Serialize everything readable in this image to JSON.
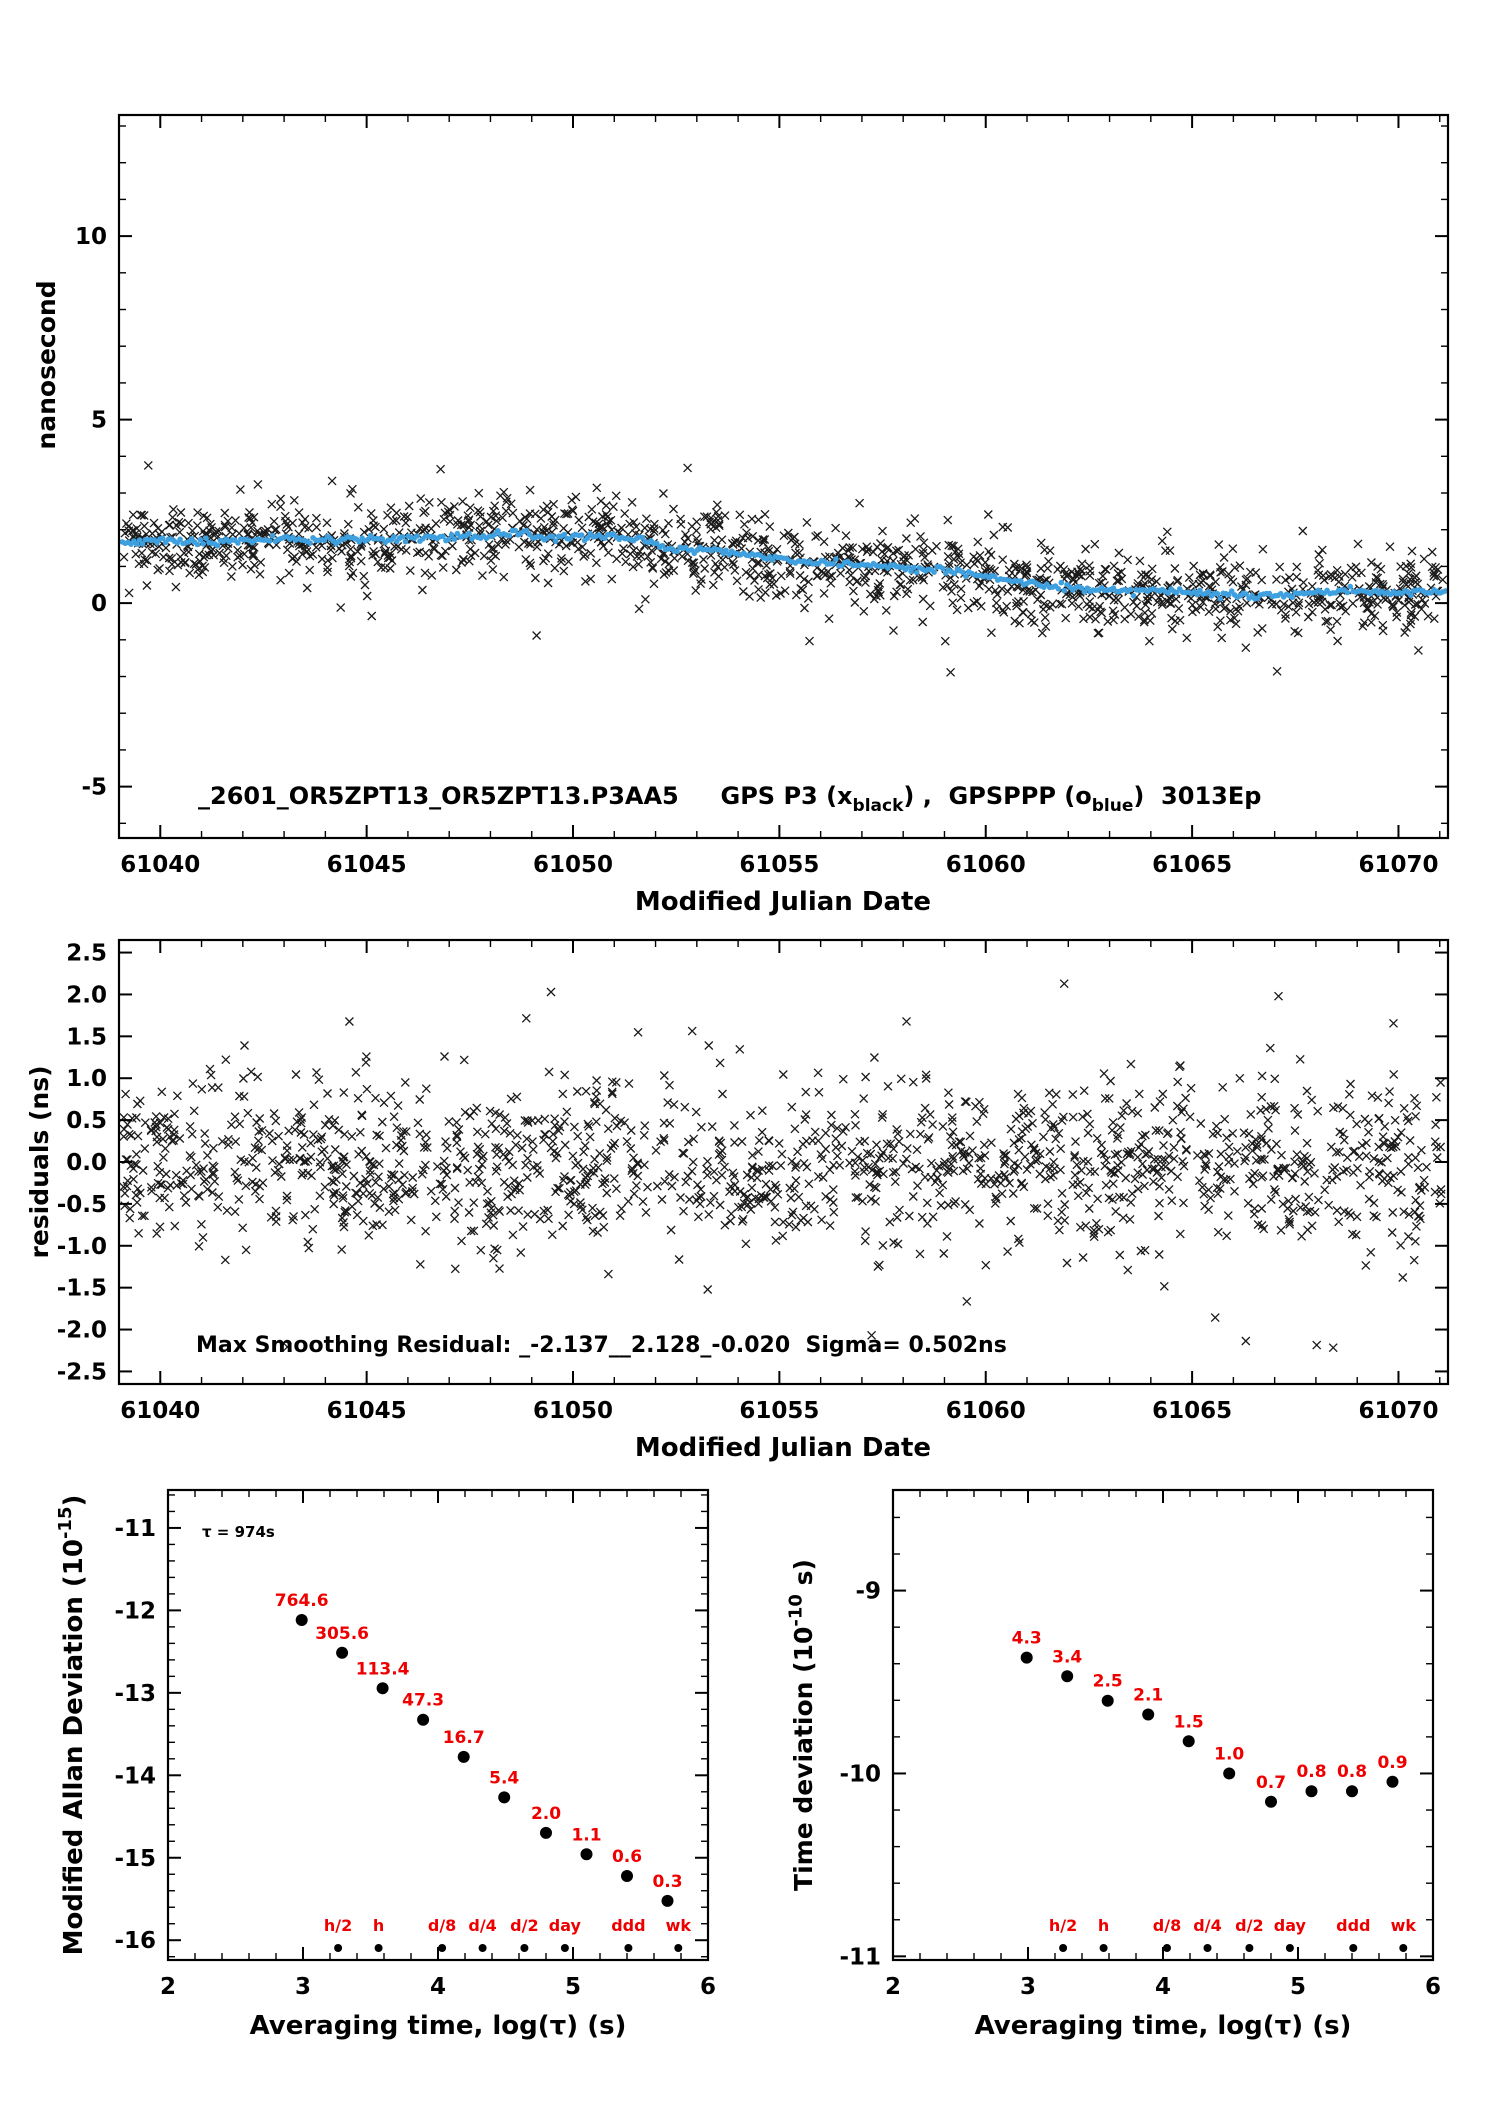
{
  "figure": {
    "background": "#ffffff",
    "foreground": "#000000",
    "blue": "#3fa0e0",
    "red": "#ee0000"
  },
  "chart_data": [
    {
      "id": "gps-comparison",
      "type": "scatter",
      "xlabel": "Modified Julian Date",
      "ylabel": "nanosecond",
      "xlim": [
        61039,
        61071.2
      ],
      "ylim": [
        -6.4,
        13.3
      ],
      "xticks": {
        "values": [
          61040,
          61045,
          61050,
          61055,
          61060,
          61065,
          61070
        ],
        "labels": [
          "61040",
          "61045",
          "61050",
          "61055",
          "61060",
          "61065",
          "61070"
        ],
        "minor_step": 1
      },
      "yticks": {
        "values": [
          10,
          5,
          0,
          -5
        ],
        "labels": [
          "10",
          "5",
          "0",
          "-5"
        ],
        "minor_step": 1
      },
      "legend_parts": [
        {
          "t": "_2601_OR5ZPT13_OR5ZPT13.P3AA5     GPS P3 (x"
        },
        {
          "t": "black",
          "sub": true
        },
        {
          "t": ") ,  GPSPPP (o"
        },
        {
          "t": "blue",
          "sub": true
        },
        {
          "t": ")  3013Ep"
        }
      ],
      "series": [
        {
          "name": "GPS P3",
          "marker": "x",
          "color": "#1a1a1a",
          "gen": {
            "n": 1450,
            "seed": 101,
            "sigma": 0.55,
            "outlier_frac": 0.03,
            "outlier_sigma": 1.0,
            "clip": [
              -2.4,
              4.0
            ]
          }
        },
        {
          "name": "GPSPPP",
          "marker": "o",
          "color": "#3fa0e0",
          "trend": [
            [
              61039,
              1.62
            ],
            [
              61040,
              1.68
            ],
            [
              61041,
              1.66
            ],
            [
              61042,
              1.72
            ],
            [
              61043,
              1.71
            ],
            [
              61044,
              1.73
            ],
            [
              61045,
              1.78
            ],
            [
              61046,
              1.74
            ],
            [
              61047,
              1.79
            ],
            [
              61048,
              1.82
            ],
            [
              61048.6,
              1.95
            ],
            [
              61049.2,
              1.8
            ],
            [
              61050,
              1.82
            ],
            [
              61050.8,
              1.84
            ],
            [
              61051.5,
              1.72
            ],
            [
              61052.2,
              1.55
            ],
            [
              61052.8,
              1.44
            ],
            [
              61053.4,
              1.47
            ],
            [
              61054,
              1.32
            ],
            [
              61055,
              1.2
            ],
            [
              61056,
              1.12
            ],
            [
              61057,
              1.05
            ],
            [
              61058,
              0.97
            ],
            [
              61059,
              0.9
            ],
            [
              61060,
              0.74
            ],
            [
              61060.6,
              0.62
            ],
            [
              61061.2,
              0.52
            ],
            [
              61062,
              0.42
            ],
            [
              61063,
              0.36
            ],
            [
              61064,
              0.33
            ],
            [
              61065,
              0.3
            ],
            [
              61066,
              0.22
            ],
            [
              61067,
              0.18
            ],
            [
              61068,
              0.28
            ],
            [
              61069,
              0.33
            ],
            [
              61070,
              0.27
            ],
            [
              61071.2,
              0.33
            ]
          ],
          "gen": {
            "step": 0.07,
            "jitter": 0.05,
            "seed": 55
          }
        }
      ]
    },
    {
      "id": "residuals",
      "type": "scatter",
      "xlabel": "Modified Julian Date",
      "ylabel": "residuals (ns)",
      "xlim": [
        61039,
        61071.2
      ],
      "ylim": [
        -2.65,
        2.65
      ],
      "xticks": {
        "values": [
          61040,
          61045,
          61050,
          61055,
          61060,
          61065,
          61070
        ],
        "labels": [
          "61040",
          "61045",
          "61050",
          "61055",
          "61060",
          "61065",
          "61070"
        ],
        "minor_step": 1
      },
      "yticks": {
        "values": [
          2.5,
          2,
          1.5,
          1,
          0.5,
          0,
          -0.5,
          -1,
          -1.5,
          -2,
          -2.5
        ],
        "labels": [
          "2.5",
          "2.0",
          "1.5",
          "1.0",
          "0.5",
          "0.0",
          "-0.5",
          "-1.0",
          "-1.5",
          "-2.0",
          "-2.5"
        ],
        "minor_step": null
      },
      "annotation_parts": [
        {
          "t": "Max Smoothing Residual: _-2.137__2.128_-0.020  Sigma= 0.502ns"
        }
      ],
      "stats": {
        "max_negative": -2.137,
        "max_positive": 2.128,
        "mean": -0.02,
        "sigma_ns": 0.502
      },
      "series": [
        {
          "name": "residuals",
          "marker": "x",
          "color": "#1a1a1a",
          "gen": {
            "n": 1500,
            "seed": 202,
            "sigma": 0.5,
            "outlier_frac": 0.05,
            "outlier_sigma": 0.85,
            "clip": [
              -2.3,
              2.3
            ]
          },
          "extra_points": [
            [
              61061.9,
              2.128
            ],
            [
              61066.3,
              -2.137
            ]
          ]
        }
      ]
    },
    {
      "id": "modified-allan-deviation",
      "type": "scatter",
      "xlabel": "Averaging time, log(τ) (s)",
      "ylabel_parts": [
        {
          "t": "Modified Allan Deviation (10"
        },
        {
          "t": "-15",
          "sup": true
        },
        {
          "t": ")"
        }
      ],
      "xlim": [
        2,
        6
      ],
      "ylim": [
        -16.24,
        -10.54
      ],
      "xticks": {
        "values": [
          2,
          3,
          4,
          5,
          6
        ],
        "labels": [
          "2",
          "3",
          "4",
          "5",
          "6"
        ],
        "minor_step": 0.2
      },
      "yticks": {
        "values": [
          -11,
          -12,
          -13,
          -14,
          -15,
          -16
        ],
        "labels": [
          "-11",
          "-12",
          "-13",
          "-14",
          "-15",
          "-16"
        ],
        "minor_step": 0.2
      },
      "annotation": "τ = 974s",
      "unit_exponent": -15,
      "points": {
        "x": [
          2.99,
          3.29,
          3.59,
          3.89,
          4.19,
          4.49,
          4.8,
          5.1,
          5.4,
          5.7
        ],
        "values": [
          764.6,
          305.6,
          113.4,
          47.3,
          16.7,
          5.4,
          2.0,
          1.1,
          0.6,
          0.3
        ],
        "labels": [
          "764.6",
          "305.6",
          "113.4",
          "47.3",
          "16.7",
          "5.4",
          "2.0",
          "1.1",
          "0.6",
          "0.3"
        ]
      },
      "tau_marks": {
        "x": [
          3.26,
          3.56,
          4.03,
          4.33,
          4.64,
          4.94,
          5.41,
          5.78
        ],
        "labels": [
          "h/2",
          "h",
          "d/8",
          "d/4",
          "d/2",
          "day",
          "ddd",
          "wk"
        ]
      }
    },
    {
      "id": "time-deviation",
      "type": "scatter",
      "xlabel": "Averaging time, log(τ) (s)",
      "ylabel_parts": [
        {
          "t": "Time deviation (10"
        },
        {
          "t": "-10",
          "sup": true
        },
        {
          "t": " s)"
        }
      ],
      "xlim": [
        2,
        6
      ],
      "ylim": [
        -11.02,
        -8.45
      ],
      "xticks": {
        "values": [
          2,
          3,
          4,
          5,
          6
        ],
        "labels": [
          "2",
          "3",
          "4",
          "5",
          "6"
        ],
        "minor_step": 0.2
      },
      "yticks": {
        "values": [
          -9,
          -10,
          -11
        ],
        "labels": [
          "-9",
          "-10",
          "-11"
        ],
        "minor_step": 0.2
      },
      "unit_exponent": -10,
      "points": {
        "x": [
          2.99,
          3.29,
          3.59,
          3.89,
          4.19,
          4.49,
          4.8,
          5.1,
          5.4,
          5.7
        ],
        "values": [
          4.3,
          3.4,
          2.5,
          2.1,
          1.5,
          1.0,
          0.7,
          0.8,
          0.8,
          0.9
        ],
        "labels": [
          "4.3",
          "3.4",
          "2.5",
          "2.1",
          "1.5",
          "1.0",
          "0.7",
          "0.8",
          "0.8",
          "0.9"
        ]
      },
      "tau_marks": {
        "x": [
          3.26,
          3.56,
          4.03,
          4.33,
          4.64,
          4.94,
          5.41,
          5.78
        ],
        "labels": [
          "h/2",
          "h",
          "d/8",
          "d/4",
          "d/2",
          "day",
          "ddd",
          "wk"
        ]
      }
    }
  ]
}
